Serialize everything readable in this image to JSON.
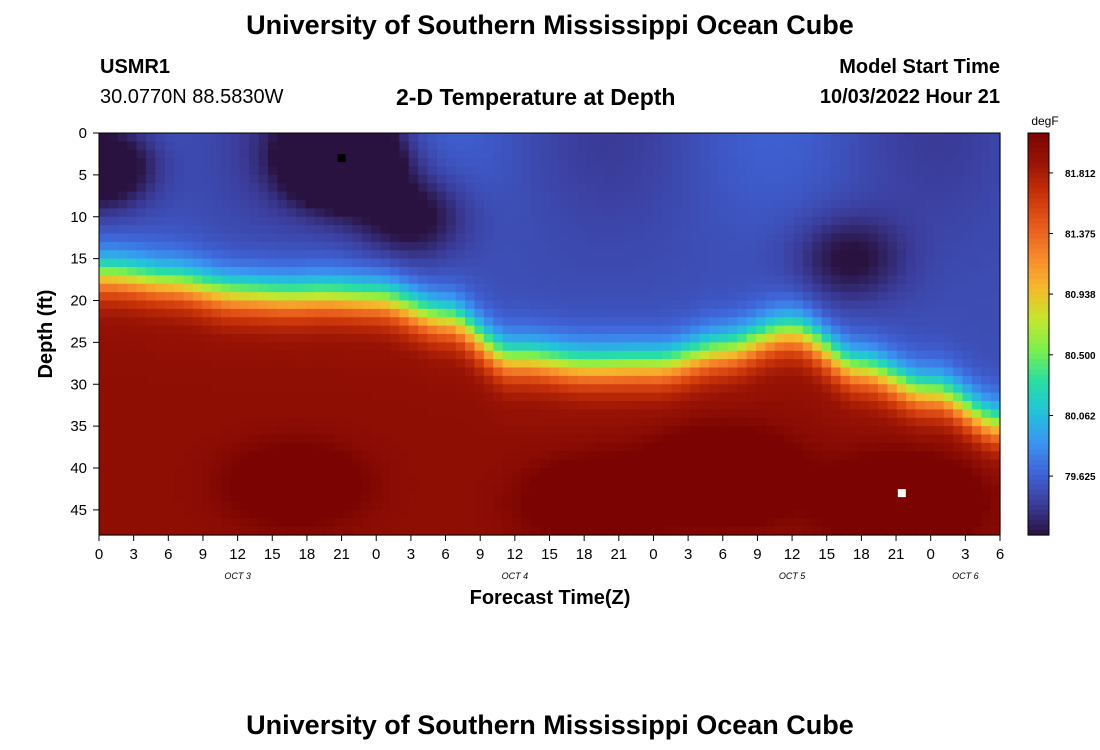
{
  "header": {
    "title": "University of Southern Mississippi Ocean Cube",
    "station_id": "USMR1",
    "coordinates": "30.0770N  88.5830W",
    "plot_title": "2-D Temperature at Depth",
    "model_start_label": "Model Start Time",
    "model_start_value": "10/03/2022 Hour 21"
  },
  "footer": {
    "title": "University of Southern Mississippi Ocean Cube"
  },
  "chart_data": {
    "type": "heatmap",
    "title": "2-D Temperature at Depth",
    "xlabel": "Forecast Time(Z)",
    "ylabel": "Depth (ft)",
    "x_tick_labels": [
      "0",
      "3",
      "6",
      "9",
      "12",
      "15",
      "18",
      "21",
      "0",
      "3",
      "6",
      "9",
      "12",
      "15",
      "18",
      "21",
      "0",
      "3",
      "6",
      "9",
      "12",
      "15",
      "18",
      "21",
      "0",
      "3",
      "6"
    ],
    "x_range_hours": [
      0,
      78
    ],
    "date_labels": [
      {
        "label": "OCT 3",
        "hour": 12
      },
      {
        "label": "OCT 4",
        "hour": 36
      },
      {
        "label": "OCT 5",
        "hour": 60
      },
      {
        "label": "OCT 6",
        "hour": 75
      }
    ],
    "y_tick_labels": [
      "0",
      "5",
      "10",
      "15",
      "20",
      "25",
      "30",
      "35",
      "40",
      "45"
    ],
    "y_range_ft": [
      0,
      48
    ],
    "colorbar": {
      "unit": "degF",
      "tick_labels": [
        "81.812",
        "81.375",
        "80.938",
        "80.500",
        "80.062",
        "79.625"
      ],
      "ticks": [
        81.812,
        81.375,
        80.938,
        80.5,
        80.062,
        79.625
      ],
      "range": [
        79.2,
        82.1
      ]
    },
    "thermocline_depth_ft": {
      "hours": [
        0,
        6,
        12,
        18,
        24,
        30,
        36,
        42,
        48,
        54,
        60,
        66,
        72,
        78
      ],
      "depths": [
        17,
        18,
        19,
        19.5,
        20,
        22,
        27,
        28,
        27.5,
        26,
        24,
        28,
        31,
        35
      ]
    },
    "markers": [
      {
        "kind": "minimum",
        "hour": 21,
        "depth_ft": 3,
        "color": "#000000"
      },
      {
        "kind": "maximum",
        "hour": 69.5,
        "depth_ft": 43,
        "color": "#ffffff"
      }
    ],
    "warm_cores": [
      {
        "hour": 17,
        "depth_ft": 42,
        "strength": 0.15
      },
      {
        "hour": 43,
        "depth_ft": 44,
        "strength": 0.18
      },
      {
        "hour": 54,
        "depth_ft": 41,
        "strength": 0.3
      },
      {
        "hour": 69.5,
        "depth_ft": 44,
        "strength": 0.3
      }
    ],
    "cold_cores": [
      {
        "hour": 21,
        "depth_ft": 3,
        "strength": 0.45
      },
      {
        "hour": 0,
        "depth_ft": 4,
        "strength": 0.25
      },
      {
        "hour": 27,
        "depth_ft": 10,
        "strength": 0.15
      },
      {
        "hour": 65,
        "depth_ft": 15,
        "strength": 0.12
      }
    ],
    "palette": [
      "#2a1240",
      "#3b3c9a",
      "#3f64d8",
      "#3a95f2",
      "#22c4d9",
      "#29dfa0",
      "#7cf04c",
      "#c6e62d",
      "#f6b82b",
      "#f7882b",
      "#e85a1a",
      "#c93309",
      "#9a1405",
      "#7b0402"
    ]
  }
}
